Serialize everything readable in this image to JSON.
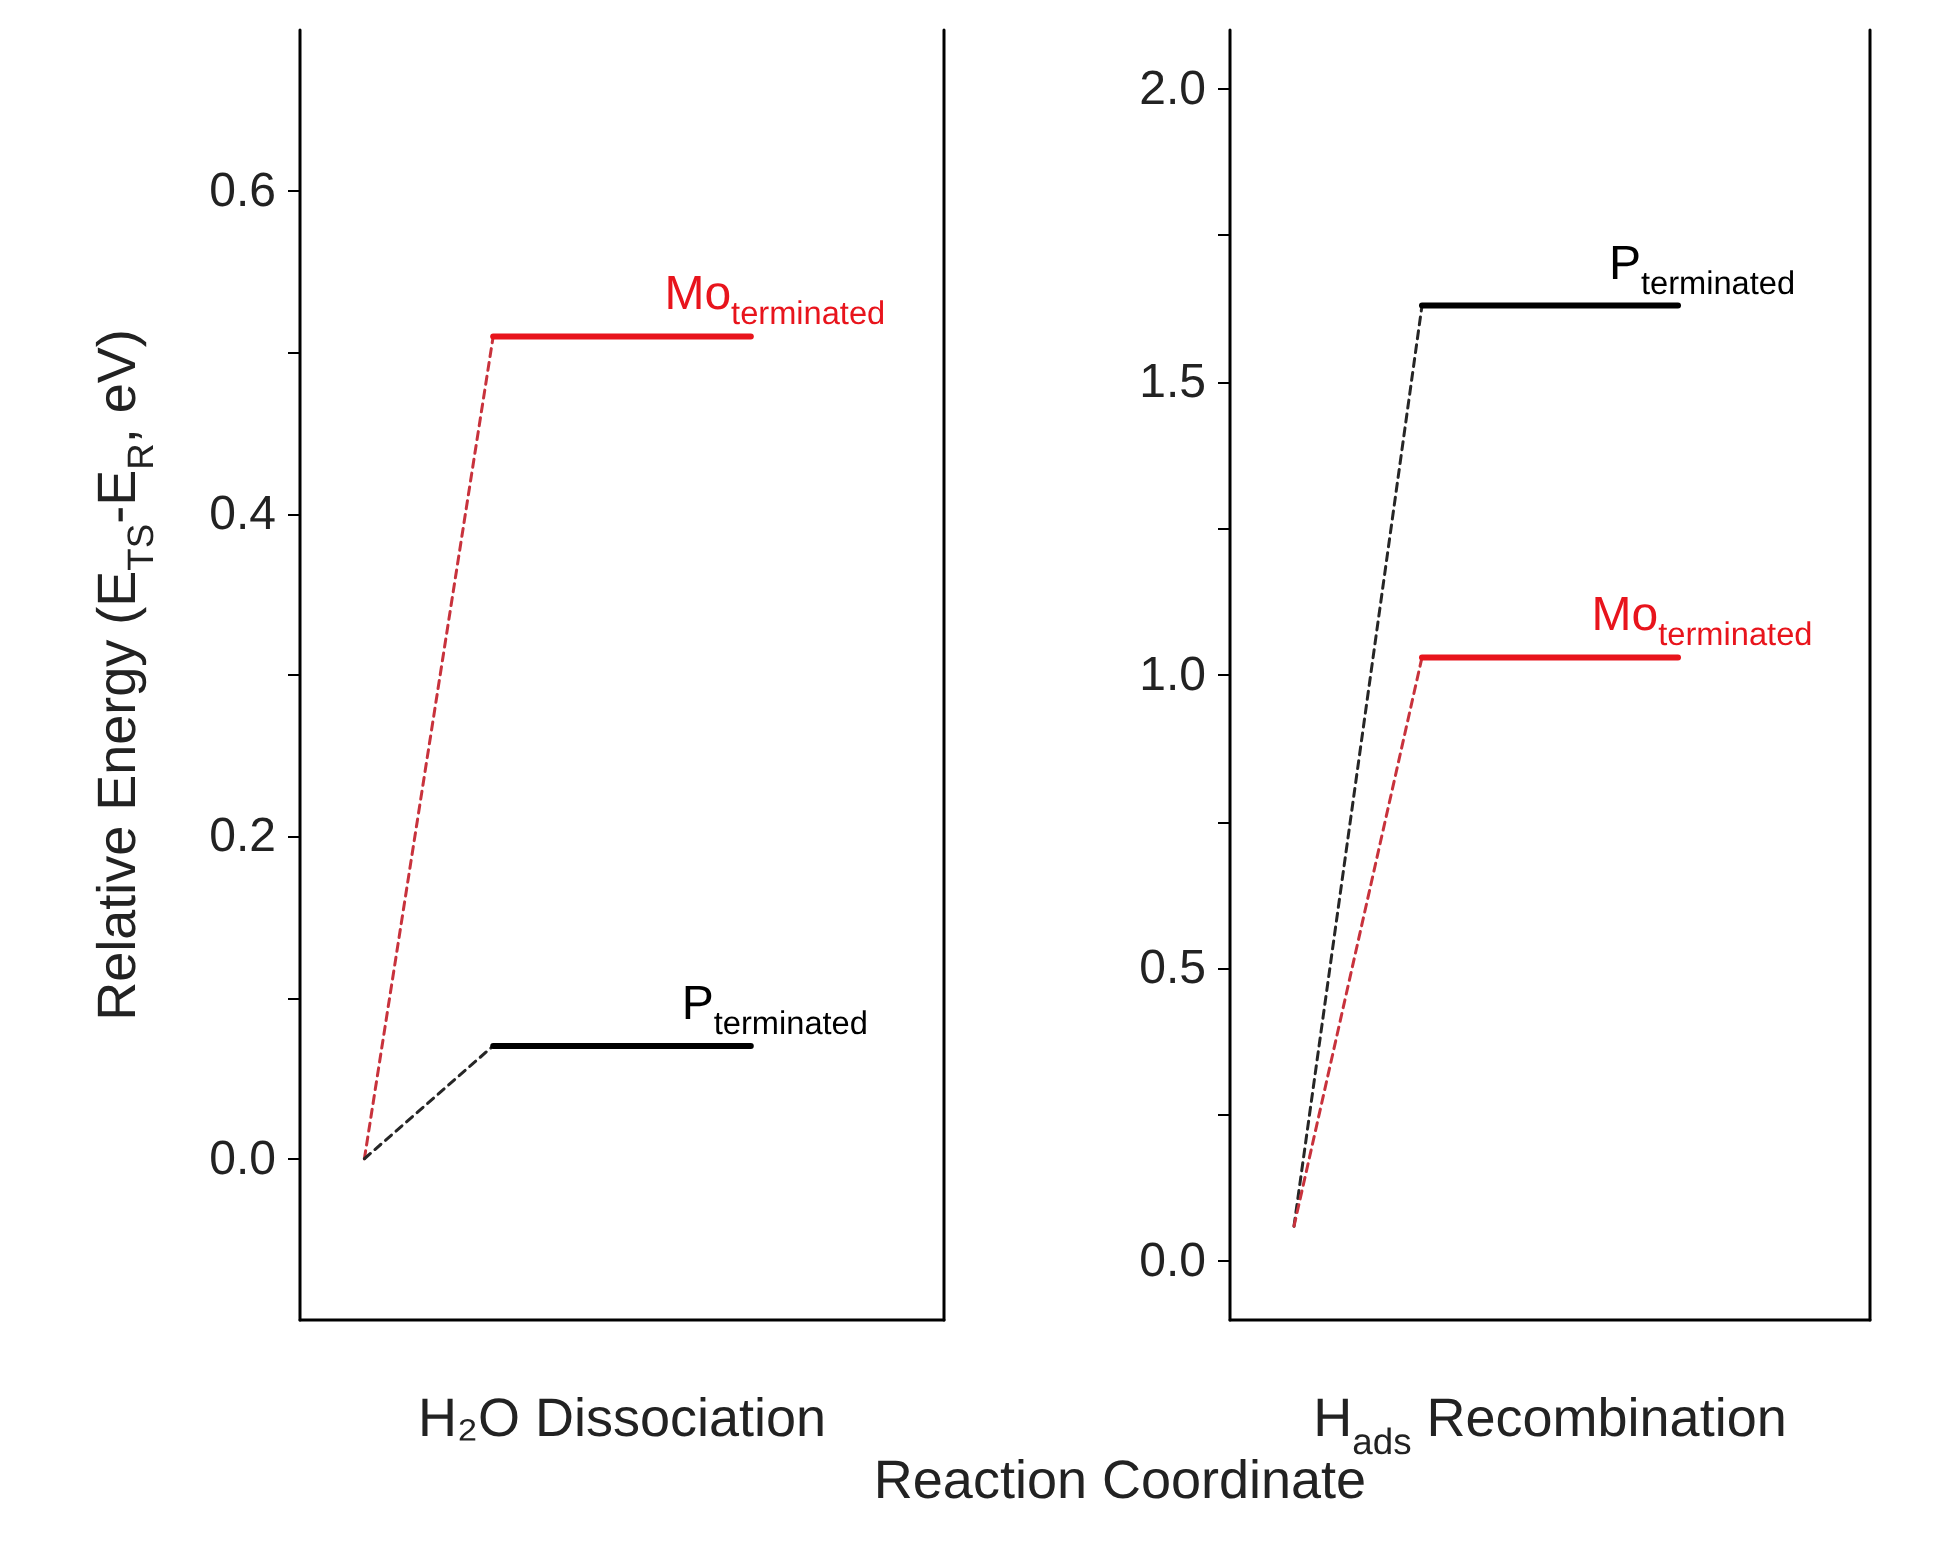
{
  "chart_data": [
    {
      "type": "line",
      "xlabel": "H₂O Dissociation",
      "ylabel": "Relative Energy (E$_{TS}$-E$_{R}$, eV)",
      "categories": [
        null,
        null,
        null,
        null,
        null
      ],
      "ylim": [
        -0.1,
        0.7
      ],
      "yticks": [
        {
          "value": 0,
          "label": "0.0"
        },
        {
          "value": 0.1,
          "label": null
        },
        0.2,
        {
          "value": 0.3,
          "label": null
        },
        0.4,
        {
          "value": 0.5,
          "label": null
        },
        0.6
      ],
      "tick_labels": "y",
      "grid": false,
      "marker": "none",
      "line_style": "solid",
      "series": [
        {
          "color": "#c8323c",
          "line_style": "dashed",
          "values": [
            0,
            0.51,
            null,
            null,
            null
          ]
        },
        {
          "name": "Mo$_{terminated}$",
          "color": "#e8141c",
          "values": [
            null,
            0.51,
            0.51,
            0.51,
            null
          ]
        },
        {
          "color": "#262626",
          "line_style": "dashed",
          "values": [
            0,
            0.07,
            null,
            null,
            null
          ]
        },
        {
          "name": "P$_{terminated}$",
          "color": "#000000",
          "values": [
            null,
            0.07,
            0.07,
            0.07,
            null
          ]
        }
      ]
    },
    {
      "type": "line",
      "xlabel": "H$_{ads}$ Recombination",
      "annotations": [
        "Reaction Coordinate"
      ],
      "categories": [
        null,
        null,
        null,
        null,
        null
      ],
      "ylim": [
        -0.1,
        2.1
      ],
      "yticks": [
        {
          "value": 0,
          "label": "0.0"
        },
        {
          "value": 0.25,
          "label": null
        },
        {
          "value": 0.5,
          "label": "0.5"
        },
        {
          "value": 0.75,
          "label": null
        },
        {
          "value": 1,
          "label": "1.0"
        },
        {
          "value": 1.25,
          "label": null
        },
        {
          "value": 1.5,
          "label": "1.5"
        },
        {
          "value": 1.75,
          "label": null
        },
        {
          "value": 2,
          "label": "2.0"
        }
      ],
      "tick_labels": "y",
      "grid": false,
      "marker": "none",
      "line_style": "solid",
      "series": [
        {
          "color": "#262626",
          "line_style": "dashed",
          "values": [
            0.06,
            1.63,
            null,
            null,
            null
          ]
        },
        {
          "name": "P$_{terminated}$",
          "color": "#000000",
          "values": [
            null,
            1.63,
            1.63,
            1.63,
            null
          ]
        },
        {
          "color": "#c8323c",
          "line_style": "dashed",
          "values": [
            0.06,
            1.03,
            null,
            null,
            null
          ]
        },
        {
          "name": "Mo$_{terminated}$",
          "color": "#e8141c",
          "values": [
            null,
            1.03,
            1.03,
            1.03,
            null
          ]
        }
      ]
    }
  ]
}
